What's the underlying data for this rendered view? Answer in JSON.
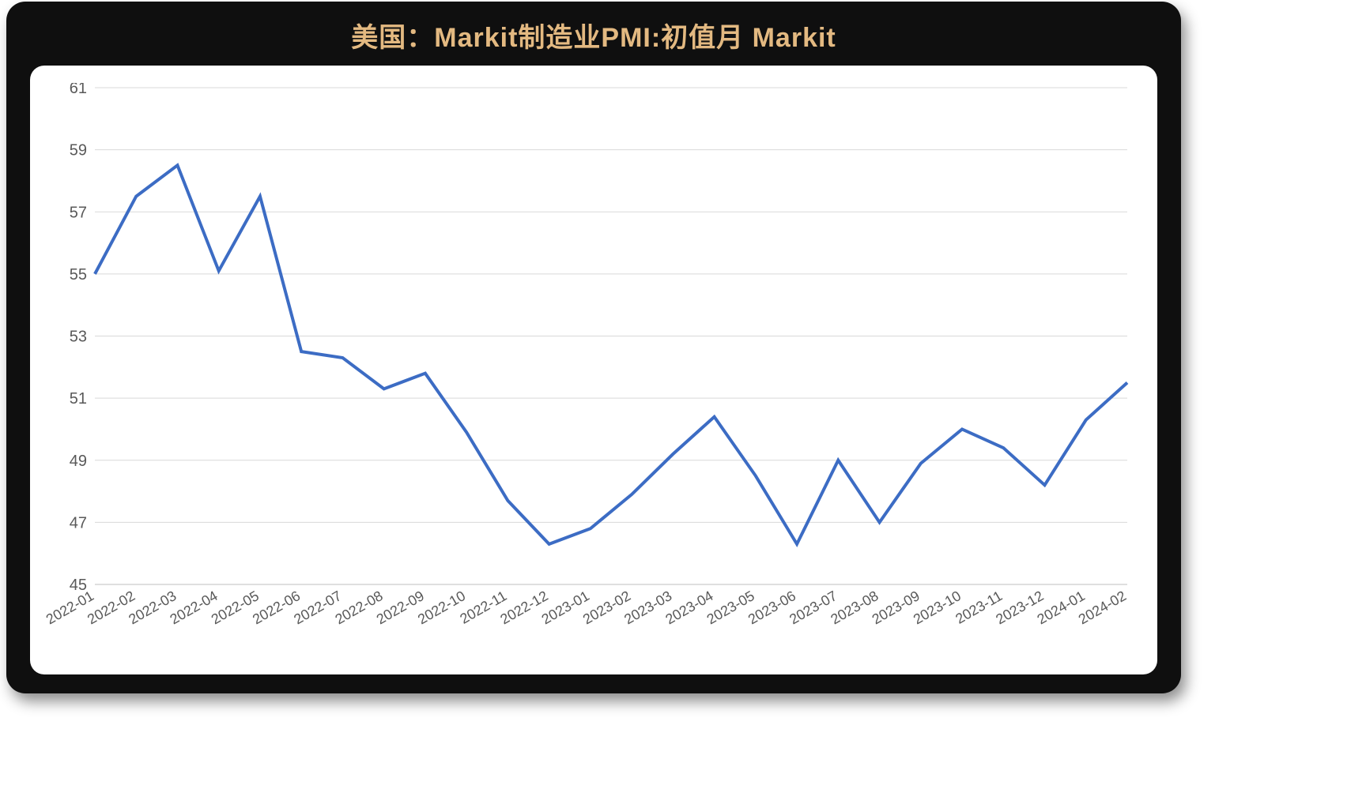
{
  "chart": {
    "type": "line",
    "title": "美国：Markit制造业PMI:初值月 Markit",
    "title_color": "#e3b981",
    "title_fontsize": 34,
    "card_background": "#0f0f0f",
    "panel_background": "#ffffff",
    "panel_border_radius": 18,
    "grid_color": "#d9d9d9",
    "axis_label_color": "#595959",
    "x_labels": [
      "2022-01",
      "2022-02",
      "2022-03",
      "2022-04",
      "2022-05",
      "2022-06",
      "2022-07",
      "2022-08",
      "2022-09",
      "2022-10",
      "2022-11",
      "2022-12",
      "2023-01",
      "2023-02",
      "2023-03",
      "2023-04",
      "2023-05",
      "2023-06",
      "2023-07",
      "2023-08",
      "2023-09",
      "2023-10",
      "2023-11",
      "2023-12",
      "2024-01",
      "2024-02"
    ],
    "values": [
      55.0,
      57.5,
      58.5,
      55.1,
      57.5,
      52.5,
      52.3,
      51.3,
      51.8,
      49.9,
      47.7,
      46.3,
      46.8,
      47.9,
      49.2,
      50.4,
      48.5,
      46.3,
      49.0,
      47.0,
      48.9,
      50.0,
      49.4,
      48.2,
      50.3,
      51.5
    ],
    "line_color": "#3c6cc4",
    "line_width": 4,
    "ylim": [
      45,
      61
    ],
    "ytick_step": 2,
    "yticks": [
      45,
      47,
      49,
      51,
      53,
      55,
      57,
      59,
      61
    ],
    "ytick_fontsize": 20,
    "xtick_fontsize": 18,
    "xtick_rotation_deg": 30
  }
}
